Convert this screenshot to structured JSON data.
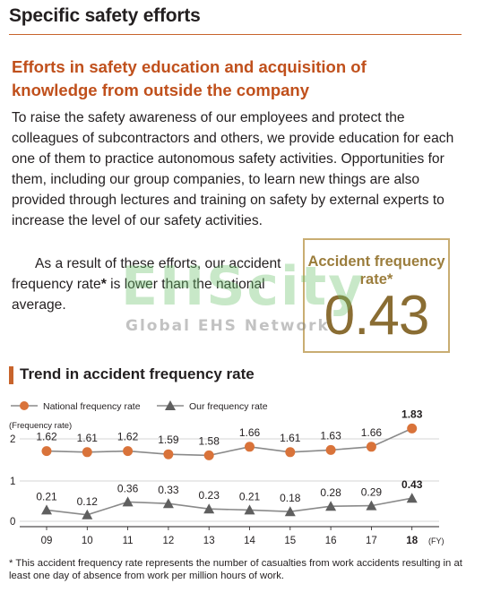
{
  "page_title": "Specific safety efforts",
  "section_heading": "Efforts in safety education and acquisition of knowledge from outside the company",
  "body_paragraph": "To raise the safety awareness of our employees and protect the colleagues of subcontractors and others, we provide education for each one of them to practice autonomous safety activities. Opportunities for them, including our group companies, to learn new things are also provided through lectures and training on safety by external experts to increase the level of our safety activities.",
  "result_paragraph": {
    "before": "As a result of these efforts, our accident frequency rate",
    "asterisk": "*",
    "after": " is lower than the national average."
  },
  "stat": {
    "label": "Accident frequency rate*",
    "value": "0.43"
  },
  "watermark": {
    "main": "EHScity",
    "sub": "Global EHS Network"
  },
  "chart_heading": "Trend in accident frequency rate",
  "chart_data": {
    "type": "line",
    "title": "Trend in accident frequency rate",
    "ylabel": "(Frequency rate)",
    "x_unit": "(FY)",
    "categories": [
      "09",
      "10",
      "11",
      "12",
      "13",
      "14",
      "15",
      "16",
      "17",
      "18"
    ],
    "y_ticks": [
      "2",
      "1",
      "0"
    ],
    "highlight_last": true,
    "grid": true,
    "legend_position": "top-left",
    "series": [
      {
        "name": "National frequency rate",
        "marker": "circle",
        "color": "#d9733a",
        "values": [
          1.62,
          1.61,
          1.62,
          1.59,
          1.58,
          1.66,
          1.61,
          1.63,
          1.66,
          1.83
        ],
        "labels": [
          "1.62",
          "1.61",
          "1.62",
          "1.59",
          "1.58",
          "1.66",
          "1.61",
          "1.63",
          "1.66",
          "1.83"
        ]
      },
      {
        "name": "Our frequency rate",
        "marker": "triangle",
        "color": "#5f5f5f",
        "values": [
          0.21,
          0.12,
          0.36,
          0.33,
          0.23,
          0.21,
          0.18,
          0.28,
          0.29,
          0.43
        ],
        "labels": [
          "0.21",
          "0.12",
          "0.36",
          "0.33",
          "0.23",
          "0.21",
          "0.18",
          "0.28",
          "0.29",
          "0.43"
        ]
      }
    ]
  },
  "footnote": "* This accident frequency rate represents the number of casualties from work accidents resulting in at least one day of absence from work per million hours of work."
}
